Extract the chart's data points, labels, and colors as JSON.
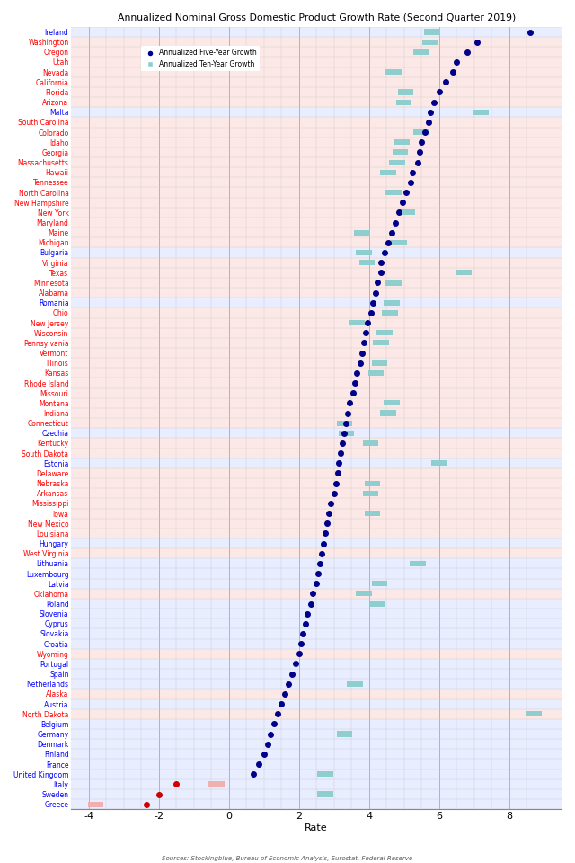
{
  "title": "Annualized Nominal Gross Domestic Product Growth Rate (Second Quarter 2019)",
  "xlabel": "Rate",
  "sources": "Sources: Stockingblue, Bureau of Economic Analysis, Eurostat, Federal Reserve",
  "xlim": [
    -4.5,
    9.5
  ],
  "xticks": [
    -4,
    -2,
    0,
    2,
    4,
    6,
    8
  ],
  "legend_five": "Annualized Five-Year Growth",
  "legend_ten": "Annualized Ten-Year Growth",
  "states": [
    {
      "name": "Ireland",
      "eu": true,
      "five": 8.6,
      "ten": 5.8
    },
    {
      "name": "Washington",
      "eu": false,
      "five": 7.1,
      "ten": 5.75
    },
    {
      "name": "Oregon",
      "eu": false,
      "five": 6.8,
      "ten": 5.5
    },
    {
      "name": "Utah",
      "eu": false,
      "five": 6.5,
      "ten": null
    },
    {
      "name": "Nevada",
      "eu": false,
      "five": 6.4,
      "ten": 4.7
    },
    {
      "name": "California",
      "eu": false,
      "five": 6.2,
      "ten": null
    },
    {
      "name": "Florida",
      "eu": false,
      "five": 6.0,
      "ten": 5.05
    },
    {
      "name": "Arizona",
      "eu": false,
      "five": 5.85,
      "ten": 5.0
    },
    {
      "name": "Malta",
      "eu": true,
      "five": 5.75,
      "ten": 7.2
    },
    {
      "name": "South Carolina",
      "eu": false,
      "five": 5.7,
      "ten": null
    },
    {
      "name": "Colorado",
      "eu": false,
      "five": 5.6,
      "ten": 5.5
    },
    {
      "name": "Idaho",
      "eu": false,
      "five": 5.5,
      "ten": 4.95
    },
    {
      "name": "Georgia",
      "eu": false,
      "five": 5.45,
      "ten": 4.9
    },
    {
      "name": "Massachusetts",
      "eu": false,
      "five": 5.4,
      "ten": 4.8
    },
    {
      "name": "Hawaii",
      "eu": false,
      "five": 5.25,
      "ten": 4.55
    },
    {
      "name": "Tennessee",
      "eu": false,
      "five": 5.2,
      "ten": null
    },
    {
      "name": "North Carolina",
      "eu": false,
      "five": 5.05,
      "ten": 4.7
    },
    {
      "name": "New Hampshire",
      "eu": false,
      "five": 4.95,
      "ten": null
    },
    {
      "name": "New York",
      "eu": false,
      "five": 4.85,
      "ten": 5.1
    },
    {
      "name": "Maryland",
      "eu": false,
      "five": 4.75,
      "ten": null
    },
    {
      "name": "Maine",
      "eu": false,
      "five": 4.65,
      "ten": 3.8
    },
    {
      "name": "Michigan",
      "eu": false,
      "five": 4.55,
      "ten": 4.85
    },
    {
      "name": "Bulgaria",
      "eu": true,
      "five": 4.45,
      "ten": 3.85
    },
    {
      "name": "Virginia",
      "eu": false,
      "five": 4.35,
      "ten": 3.95
    },
    {
      "name": "Texas",
      "eu": false,
      "five": 4.35,
      "ten": 6.7
    },
    {
      "name": "Minnesota",
      "eu": false,
      "five": 4.25,
      "ten": 4.7
    },
    {
      "name": "Alabama",
      "eu": false,
      "five": 4.2,
      "ten": null
    },
    {
      "name": "Romania",
      "eu": true,
      "five": 4.1,
      "ten": 4.65
    },
    {
      "name": "Ohio",
      "eu": false,
      "five": 4.05,
      "ten": 4.6
    },
    {
      "name": "New Jersey",
      "eu": false,
      "five": 3.95,
      "ten": 3.65
    },
    {
      "name": "Wisconsin",
      "eu": false,
      "five": 3.9,
      "ten": 4.45
    },
    {
      "name": "Pennsylvania",
      "eu": false,
      "five": 3.85,
      "ten": 4.35
    },
    {
      "name": "Vermont",
      "eu": false,
      "five": 3.8,
      "ten": null
    },
    {
      "name": "Illinois",
      "eu": false,
      "five": 3.75,
      "ten": 4.3
    },
    {
      "name": "Kansas",
      "eu": false,
      "five": 3.65,
      "ten": 4.2
    },
    {
      "name": "Rhode Island",
      "eu": false,
      "five": 3.6,
      "ten": null
    },
    {
      "name": "Missouri",
      "eu": false,
      "five": 3.55,
      "ten": null
    },
    {
      "name": "Montana",
      "eu": false,
      "five": 3.45,
      "ten": 4.65
    },
    {
      "name": "Indiana",
      "eu": false,
      "five": 3.4,
      "ten": 4.55
    },
    {
      "name": "Connecticut",
      "eu": false,
      "five": 3.35,
      "ten": 3.3
    },
    {
      "name": "Czechia",
      "eu": true,
      "five": 3.3,
      "ten": 3.35
    },
    {
      "name": "Kentucky",
      "eu": false,
      "five": 3.25,
      "ten": 4.05
    },
    {
      "name": "South Dakota",
      "eu": false,
      "five": 3.2,
      "ten": null
    },
    {
      "name": "Estonia",
      "eu": true,
      "five": 3.15,
      "ten": 6.0
    },
    {
      "name": "Delaware",
      "eu": false,
      "five": 3.1,
      "ten": null
    },
    {
      "name": "Nebraska",
      "eu": false,
      "five": 3.05,
      "ten": 4.1
    },
    {
      "name": "Arkansas",
      "eu": false,
      "five": 3.0,
      "ten": 4.05
    },
    {
      "name": "Mississippi",
      "eu": false,
      "five": 2.9,
      "ten": null
    },
    {
      "name": "Iowa",
      "eu": false,
      "five": 2.85,
      "ten": 4.1
    },
    {
      "name": "New Mexico",
      "eu": false,
      "five": 2.8,
      "ten": null
    },
    {
      "name": "Louisiana",
      "eu": false,
      "five": 2.75,
      "ten": null
    },
    {
      "name": "Hungary",
      "eu": true,
      "five": 2.7,
      "ten": null
    },
    {
      "name": "West Virginia",
      "eu": false,
      "five": 2.65,
      "ten": null
    },
    {
      "name": "Lithuania",
      "eu": true,
      "five": 2.6,
      "ten": 5.4
    },
    {
      "name": "Luxembourg",
      "eu": true,
      "five": 2.55,
      "ten": null
    },
    {
      "name": "Latvia",
      "eu": true,
      "five": 2.5,
      "ten": 4.3
    },
    {
      "name": "Oklahoma",
      "eu": false,
      "five": 2.4,
      "ten": 3.85
    },
    {
      "name": "Poland",
      "eu": true,
      "five": 2.35,
      "ten": 4.25
    },
    {
      "name": "Slovenia",
      "eu": true,
      "five": 2.25,
      "ten": null
    },
    {
      "name": "Cyprus",
      "eu": true,
      "five": 2.2,
      "ten": null
    },
    {
      "name": "Slovakia",
      "eu": true,
      "five": 2.1,
      "ten": null
    },
    {
      "name": "Croatia",
      "eu": true,
      "five": 2.05,
      "ten": null
    },
    {
      "name": "Wyoming",
      "eu": false,
      "five": 2.0,
      "ten": null
    },
    {
      "name": "Portugal",
      "eu": true,
      "five": 1.9,
      "ten": null
    },
    {
      "name": "Spain",
      "eu": true,
      "five": 1.8,
      "ten": null
    },
    {
      "name": "Netherlands",
      "eu": true,
      "five": 1.7,
      "ten": 3.6
    },
    {
      "name": "Alaska",
      "eu": false,
      "five": 1.6,
      "ten": null
    },
    {
      "name": "Austria",
      "eu": true,
      "five": 1.5,
      "ten": null
    },
    {
      "name": "North Dakota",
      "eu": false,
      "five": 1.4,
      "ten": 8.7
    },
    {
      "name": "Belgium",
      "eu": true,
      "five": 1.3,
      "ten": null
    },
    {
      "name": "Germany",
      "eu": true,
      "five": 1.2,
      "ten": 3.3
    },
    {
      "name": "Denmark",
      "eu": true,
      "five": 1.1,
      "ten": null
    },
    {
      "name": "Finland",
      "eu": true,
      "five": 1.0,
      "ten": null
    },
    {
      "name": "France",
      "eu": true,
      "five": 0.85,
      "ten": null
    },
    {
      "name": "United Kingdom",
      "eu": true,
      "five": 0.7,
      "ten": 2.75
    },
    {
      "name": "Italy",
      "eu": true,
      "five": -1.5,
      "ten": -0.35
    },
    {
      "name": "Sweden",
      "eu": true,
      "five": -2.0,
      "ten": 2.75
    },
    {
      "name": "Greece",
      "eu": true,
      "five": -2.35,
      "ten": -3.8
    }
  ],
  "bg_color_us": "#fce8e6",
  "bg_color_eu": "#e8eeff",
  "dot_color_five_pos": "#00008B",
  "dot_color_five_neg": "#cc0000",
  "dot_color_ten_pos": "#8ecece",
  "dot_color_ten_neg": "#f0b0b0",
  "grid_color": "#cccccc",
  "grid_major_color": "#aaaaaa"
}
